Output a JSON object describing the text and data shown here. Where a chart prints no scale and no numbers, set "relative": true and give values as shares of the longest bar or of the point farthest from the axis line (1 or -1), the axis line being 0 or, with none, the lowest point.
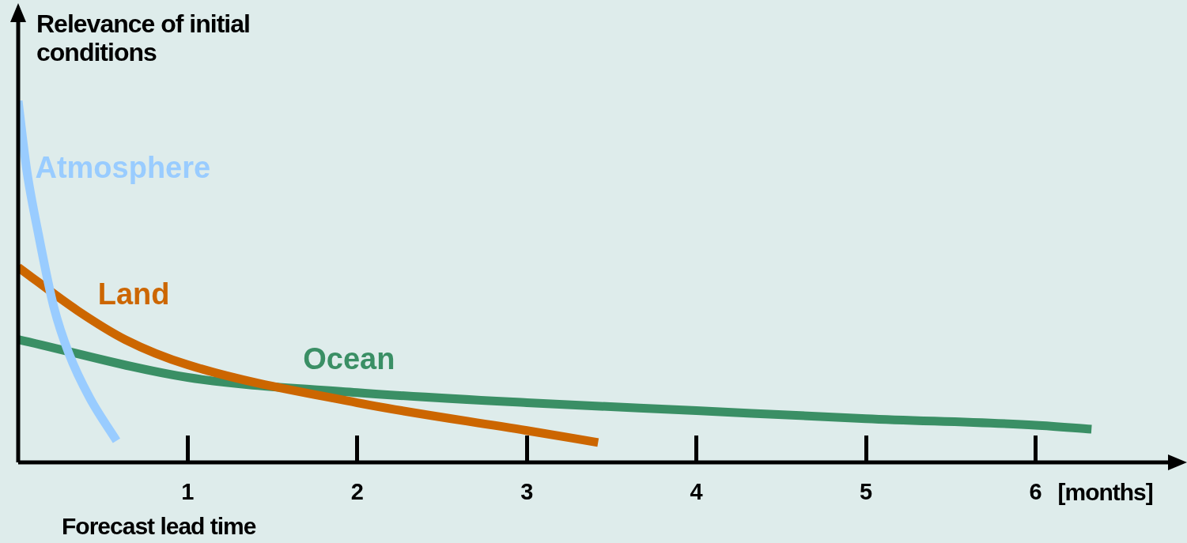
{
  "chart_data": {
    "type": "line",
    "relative": true,
    "ylabel": "Relevance of initial conditions",
    "xlabel": "Forecast lead time",
    "annotations": [
      "[months]"
    ],
    "xlim": [
      0,
      6.8
    ],
    "xticks": [
      1,
      2,
      3,
      4,
      5,
      6
    ],
    "grid": false,
    "legend": false,
    "marker": "none",
    "line_style": "solid",
    "series": [
      {
        "name": "Atmosphere",
        "color": "#99ccff",
        "x": [
          0,
          0.05,
          0.12,
          0.21,
          0.3,
          0.42,
          0.58
        ],
        "values": [
          1.0,
          0.81,
          0.63,
          0.43,
          0.3,
          0.18,
          0.06
        ]
      },
      {
        "name": "Land",
        "color": "#cc6600",
        "x": [
          0,
          0.35,
          0.63,
          1,
          2,
          3,
          3.42
        ],
        "values": [
          0.54,
          0.42,
          0.34,
          0.27,
          0.165,
          0.088,
          0.055
        ]
      },
      {
        "name": "Ocean",
        "color": "#3a8f65",
        "x": [
          0,
          1,
          2,
          3,
          4,
          5,
          6,
          6.33
        ],
        "values": [
          0.34,
          0.235,
          0.193,
          0.165,
          0.143,
          0.121,
          0.103,
          0.092
        ]
      }
    ]
  }
}
